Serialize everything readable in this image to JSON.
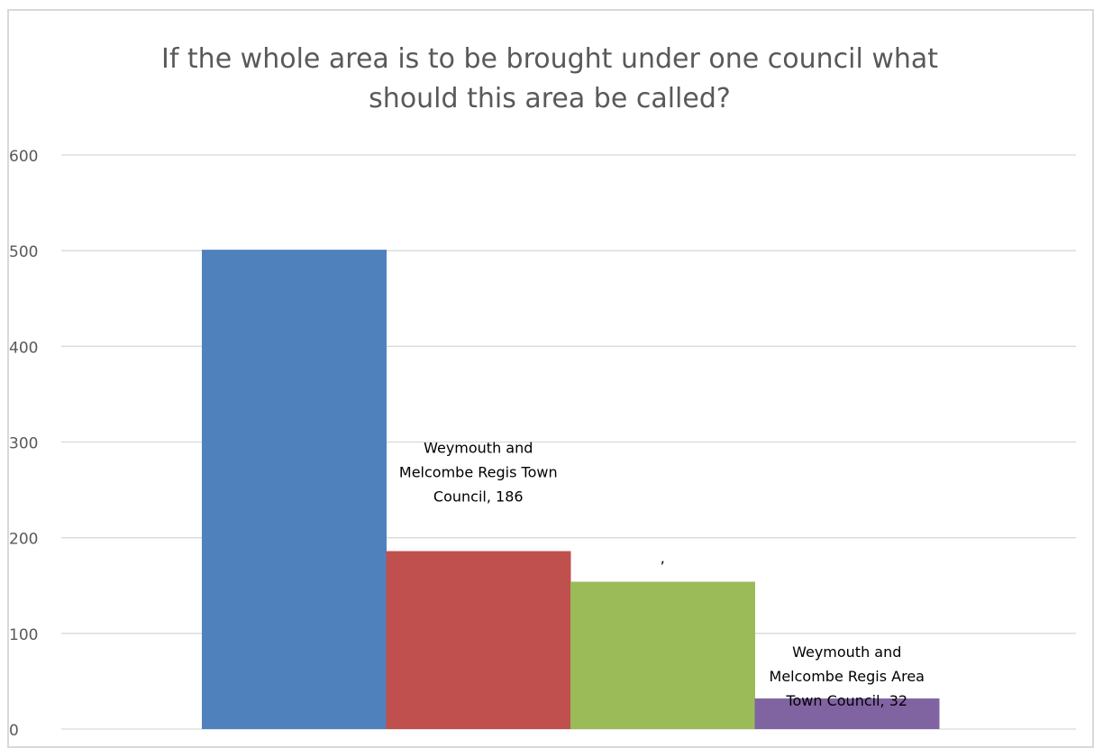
{
  "chart_data": {
    "type": "bar",
    "title": "If the whole area is to be brought under one council what should this area be called?",
    "ylim": [
      0,
      600
    ],
    "yticks": [
      0,
      100,
      200,
      300,
      400,
      500,
      600
    ],
    "grid": true,
    "legend": "none",
    "bars": [
      {
        "value": 501,
        "color": "#4f81bd",
        "label_lines": []
      },
      {
        "value": 186,
        "color": "#c0504d",
        "label_lines": [
          "Weymouth and",
          "Melcombe Regis Town",
          "Council, 186"
        ]
      },
      {
        "value": 154,
        "color": "#9bbb59",
        "label_lines": [
          ","
        ]
      },
      {
        "value": 32,
        "color": "#8064a2",
        "label_lines": [
          "Weymouth and",
          "Melcombe Regis Area",
          "Town Council, 32"
        ]
      }
    ]
  }
}
